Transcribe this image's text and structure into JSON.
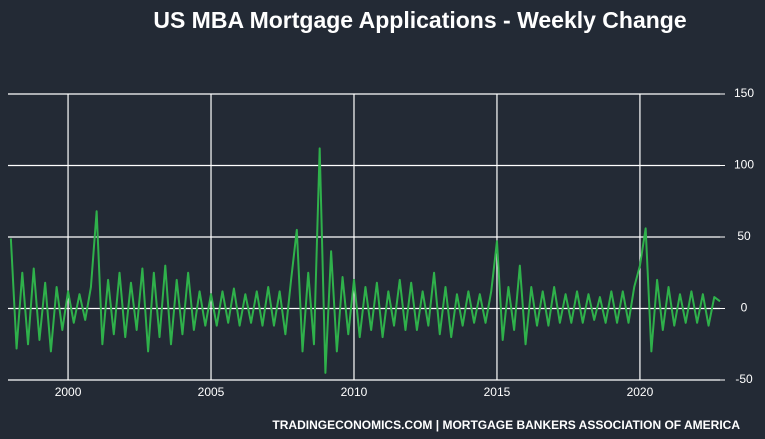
{
  "chart_data": {
    "type": "line",
    "title": "US MBA Mortgage Applications - Weekly Change",
    "source": "TRADINGECONOMICS.COM | MORTGAGE BANKERS ASSOCIATION OF AMERICA",
    "color": "#2fb14b",
    "grid": true,
    "xlim": [
      1997.9,
      2022.8
    ],
    "xticks": [
      2000,
      2005,
      2010,
      2015,
      2020
    ],
    "ylim": [
      -50,
      150
    ],
    "yticks": [
      -50,
      0,
      50,
      100,
      150
    ],
    "x": [
      1998.0,
      1998.2,
      1998.4,
      1998.6,
      1998.8,
      1999.0,
      1999.2,
      1999.4,
      1999.6,
      1999.8,
      2000.0,
      2000.2,
      2000.4,
      2000.6,
      2000.8,
      2001.0,
      2001.2,
      2001.4,
      2001.6,
      2001.8,
      2002.0,
      2002.2,
      2002.4,
      2002.6,
      2002.8,
      2003.0,
      2003.2,
      2003.4,
      2003.6,
      2003.8,
      2004.0,
      2004.2,
      2004.4,
      2004.6,
      2004.8,
      2005.0,
      2005.2,
      2005.4,
      2005.6,
      2005.8,
      2006.0,
      2006.2,
      2006.4,
      2006.6,
      2006.8,
      2007.0,
      2007.2,
      2007.4,
      2007.6,
      2007.8,
      2008.0,
      2008.2,
      2008.4,
      2008.6,
      2008.8,
      2009.0,
      2009.2,
      2009.4,
      2009.6,
      2009.8,
      2010.0,
      2010.2,
      2010.4,
      2010.6,
      2010.8,
      2011.0,
      2011.2,
      2011.4,
      2011.6,
      2011.8,
      2012.0,
      2012.2,
      2012.4,
      2012.6,
      2012.8,
      2013.0,
      2013.2,
      2013.4,
      2013.6,
      2013.8,
      2014.0,
      2014.2,
      2014.4,
      2014.6,
      2014.8,
      2015.0,
      2015.2,
      2015.4,
      2015.6,
      2015.8,
      2016.0,
      2016.2,
      2016.4,
      2016.6,
      2016.8,
      2017.0,
      2017.2,
      2017.4,
      2017.6,
      2017.8,
      2018.0,
      2018.2,
      2018.4,
      2018.6,
      2018.8,
      2019.0,
      2019.2,
      2019.4,
      2019.6,
      2019.8,
      2020.0,
      2020.2,
      2020.4,
      2020.6,
      2020.8,
      2021.0,
      2021.2,
      2021.4,
      2021.6,
      2021.8,
      2022.0,
      2022.2,
      2022.4,
      2022.6,
      2022.8
    ],
    "values": [
      49,
      -28,
      25,
      -25,
      28,
      -22,
      18,
      -30,
      15,
      -15,
      12,
      -10,
      10,
      -8,
      15,
      68,
      -25,
      20,
      -18,
      25,
      -20,
      18,
      -15,
      28,
      -30,
      25,
      -20,
      30,
      -25,
      20,
      -18,
      25,
      -15,
      12,
      -12,
      10,
      -12,
      12,
      -10,
      14,
      -12,
      10,
      -10,
      12,
      -12,
      15,
      -12,
      12,
      -18,
      20,
      55,
      -30,
      25,
      -25,
      112,
      -45,
      40,
      -30,
      22,
      -18,
      20,
      -20,
      15,
      -15,
      18,
      -20,
      12,
      -12,
      20,
      -15,
      18,
      -15,
      12,
      -12,
      25,
      -18,
      15,
      -20,
      10,
      -12,
      12,
      -10,
      10,
      -10,
      12,
      47,
      -22,
      15,
      -15,
      30,
      -25,
      15,
      -12,
      12,
      -12,
      15,
      -10,
      10,
      -10,
      12,
      -10,
      10,
      -8,
      8,
      -10,
      12,
      -10,
      12,
      -10,
      15,
      30,
      56,
      -30,
      20,
      -15,
      15,
      -12,
      10,
      -10,
      12,
      -10,
      10,
      -12,
      8,
      5
    ]
  }
}
